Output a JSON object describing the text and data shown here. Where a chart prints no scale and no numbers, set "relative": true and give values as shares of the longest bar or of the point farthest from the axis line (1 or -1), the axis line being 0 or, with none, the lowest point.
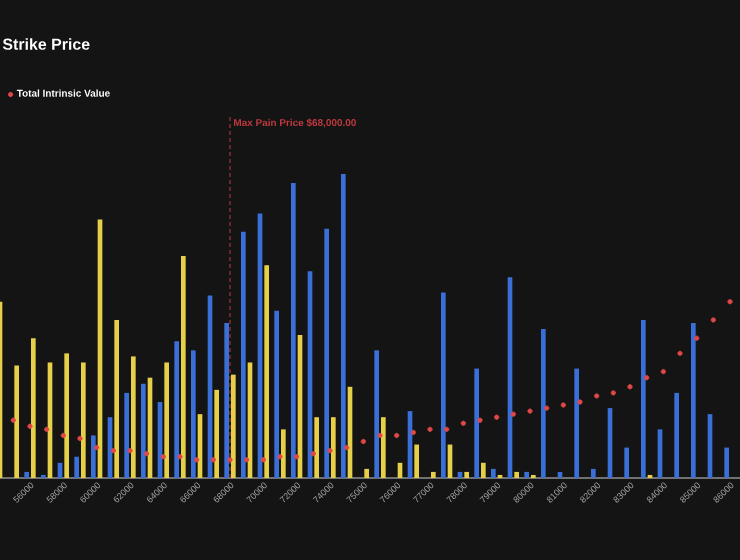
{
  "chart_data": {
    "type": "bar",
    "title": "Strike Price",
    "relative": true,
    "legend": "top left",
    "categories": [
      null,
      null,
      "56000",
      null,
      "58000",
      null,
      "60000",
      null,
      "62000",
      null,
      "64000",
      null,
      "66000",
      null,
      "68000",
      null,
      "70000",
      null,
      "72000",
      null,
      "74000",
      null,
      "75000",
      null,
      "76000",
      null,
      "77000",
      null,
      "78000",
      null,
      "79000",
      null,
      "80000",
      null,
      "81000",
      null,
      "82000",
      null,
      "83000",
      null,
      "84000",
      null,
      "85000",
      null,
      "86000"
    ],
    "series": [
      {
        "color": "#3a6fd8",
        "values": [
          null,
          0,
          0.02,
          0.01,
          0.05,
          0.07,
          0.14,
          0.2,
          0.28,
          0.31,
          0.25,
          0.45,
          0.42,
          0.6,
          0.51,
          0.81,
          0.87,
          0.55,
          0.97,
          0.68,
          0.82,
          1,
          0,
          0.42,
          0,
          0.22,
          0,
          0.61,
          0.02,
          0.36,
          0.03,
          0.66,
          0.02,
          0.49,
          0.02,
          0.36,
          0.03,
          0.23,
          0.1,
          0.52,
          0.16,
          0.28,
          0.51,
          0.21,
          0.1
        ]
      },
      {
        "color": "#e6d04a",
        "values": [
          0.58,
          0.37,
          0.46,
          0.38,
          0.41,
          0.38,
          0.85,
          0.52,
          0.4,
          0.33,
          0.38,
          0.73,
          0.21,
          0.29,
          0.34,
          0.38,
          0.7,
          0.16,
          0.47,
          0.2,
          0.2,
          0.3,
          0.03,
          0.2,
          0.05,
          0.11,
          0.02,
          0.11,
          0.02,
          0.05,
          0.01,
          0.02,
          0.01,
          0,
          0,
          0,
          0,
          0,
          0,
          0.01,
          0,
          0,
          0,
          0,
          0
        ]
      },
      {
        "name": "Total Intrinsic Value",
        "type": "scatter",
        "marker": "circle",
        "color": "#e04848",
        "values": [
          null,
          0.19,
          0.17,
          0.16,
          0.14,
          0.13,
          0.1,
          0.09,
          0.09,
          0.08,
          0.07,
          0.07,
          0.06,
          0.06,
          0.06,
          0.06,
          0.06,
          0.07,
          0.07,
          0.08,
          0.09,
          0.1,
          0.12,
          0.14,
          0.14,
          0.15,
          0.16,
          0.16,
          0.18,
          0.19,
          0.2,
          0.21,
          0.22,
          0.23,
          0.24,
          0.25,
          0.27,
          0.28,
          0.3,
          0.33,
          0.35,
          0.41,
          0.46,
          0.52,
          0.58
        ]
      }
    ],
    "ref_lines": [
      {
        "axis": "x",
        "value": "68000",
        "label": "Max Pain Price $68,000.00",
        "color": "#c0393f",
        "line_style": "dashed"
      }
    ]
  }
}
